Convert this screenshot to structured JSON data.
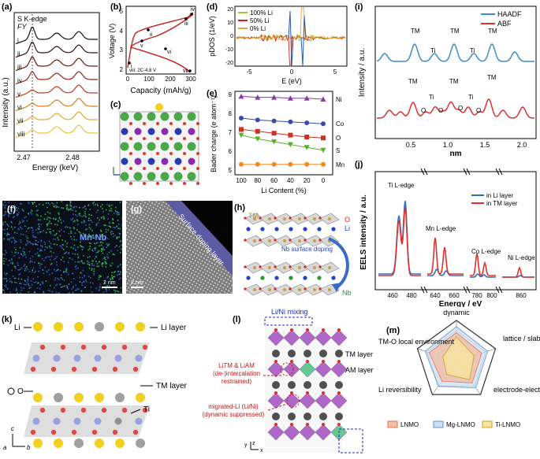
{
  "figure": {
    "panel_a": {
      "label": "(a)",
      "title": "S K-edge",
      "mode": "FY",
      "ylabel": "Intensity (a.u.)",
      "xlabel": "Energy (keV)",
      "xticks": [
        "2.47",
        "2.48"
      ],
      "curves": [
        "i",
        "ii",
        "iii",
        "iv",
        "v",
        "vi",
        "vii",
        "viii"
      ],
      "curve_colors": [
        "#111111",
        "#3a1010",
        "#6a1a14",
        "#9a2418",
        "#c23a1c",
        "#d9801e",
        "#e9a62a",
        "#f3c23c"
      ]
    },
    "panel_b": {
      "label": "(b)",
      "ylabel": "Voltage (V)",
      "xlabel": "Capacity (mAh/g)",
      "yticks": [
        "2",
        "3",
        "4",
        "5"
      ],
      "xticks": [
        "0",
        "100",
        "200",
        "300"
      ],
      "note": "viii: 2C-4.8 V",
      "points": [
        "i",
        "ii",
        "iii",
        "iv",
        "v",
        "vi",
        "vii",
        "viii"
      ]
    },
    "panel_c": {
      "label": "(c)"
    },
    "panel_d": {
      "label": "(d)",
      "ylabel": "pDOS (1/eV)",
      "xlabel": "E (eV)",
      "yticks": [
        "20",
        "10",
        "0",
        "-10",
        "-20"
      ],
      "xticks": [
        "-5",
        "0",
        "5"
      ],
      "legend": [
        {
          "name": "100% Li",
          "color": "#9ccc2c"
        },
        {
          "name": "50% Li",
          "color": "#d22020"
        },
        {
          "name": "0% Li",
          "color": "#f0a040"
        }
      ]
    },
    "panel_e": {
      "label": "(e)",
      "ylabel": "Bader charge (e atom⁻¹)",
      "xlabel": "Li Content (%)",
      "yticks": [
        "5",
        "6",
        "7",
        "8",
        "9"
      ],
      "xticks": [
        "100",
        "80",
        "60",
        "40",
        "20",
        "0"
      ],
      "chart_data": {
        "type": "line",
        "x": [
          100,
          80,
          60,
          40,
          20,
          0
        ],
        "ylim": [
          5,
          9
        ],
        "series": [
          {
            "name": "Ni",
            "color": "#8a3aa0",
            "marker": "triangle-up",
            "values": [
              8.9,
              8.85,
              8.85,
              8.8,
              8.8,
              8.75
            ]
          },
          {
            "name": "Co",
            "color": "#3a4aa8",
            "marker": "circle",
            "values": [
              7.75,
              7.65,
              7.6,
              7.55,
              7.5,
              7.45
            ]
          },
          {
            "name": "O",
            "color": "#d03020",
            "marker": "square",
            "values": [
              7.15,
              7.05,
              6.95,
              6.85,
              6.75,
              6.7
            ]
          },
          {
            "name": "S",
            "color": "#5ab02a",
            "marker": "triangle-down",
            "values": [
              6.85,
              6.65,
              6.5,
              6.35,
              6.2,
              6.05
            ]
          },
          {
            "name": "Mn",
            "color": "#f08a20",
            "marker": "circle",
            "values": [
              5.3,
              5.3,
              5.3,
              5.3,
              5.3,
              5.3
            ]
          }
        ]
      }
    },
    "panel_f": {
      "label": "(f)",
      "caption": "Mn-Nb",
      "scale": "2 nm"
    },
    "panel_g": {
      "label": "(g)",
      "caption": "Surface doping layer",
      "scale": "2 nm"
    },
    "panel_h": {
      "label": "(h)",
      "tm": "TM",
      "o": "O",
      "li": "Li",
      "nb": "Nb",
      "arrow_text": "Nb surface doping"
    },
    "panel_i": {
      "label": "(i)",
      "ylabel": "Intensity / a.u.",
      "xlabel": "nm",
      "xticks": [
        "0.5",
        "1.0",
        "1.5",
        "2.0"
      ],
      "legend": [
        {
          "name": "HAADF",
          "color": "#3c8cc8"
        },
        {
          "name": "ABF",
          "color": "#e03030"
        }
      ],
      "haadf_labels": [
        "TM",
        "Ti",
        "TM",
        "Ti",
        "TM"
      ],
      "abf_labels": [
        "TM",
        "Ti",
        "O",
        "O",
        "TM",
        "O",
        "Ti",
        "O",
        "TM"
      ]
    },
    "panel_j": {
      "label": "(j)",
      "ylabel": "EELS intensity / a.u.",
      "xlabel": "Energy / eV",
      "xticks": [
        "460",
        "480",
        "640",
        "660",
        "780",
        "800",
        "860"
      ],
      "legend": [
        {
          "name": "in Li layer",
          "color": "#2f6fc0"
        },
        {
          "name": "in TM layer",
          "color": "#e03030"
        }
      ],
      "edges": [
        "Ti L-edge",
        "Mn L-edge",
        "Co L-edge",
        "Ni L-edge"
      ]
    },
    "panel_k": {
      "label": "(k)",
      "li_left": "Li",
      "li_layer": "Li layer",
      "o": "O",
      "tm_layer": "TM layer",
      "ti": "Ti",
      "axes": [
        "c",
        "a",
        "b"
      ]
    },
    "panel_l": {
      "label": "(l)",
      "top": "Li/Ni mixing",
      "tm_layer": "TM layer",
      "am_layer": "AM layer",
      "note1_line1": "LiTM & LiAM",
      "note1_line2": "(de-)intercalation",
      "note1_line3": "restrained)",
      "note2_line1": "migrated-Li (Li/Ni)",
      "note2_line2": "(dynamic suppressed)",
      "axes": [
        "y",
        "z",
        "x"
      ]
    },
    "panel_m": {
      "label": "(m)",
      "axes": [
        "dynamic",
        "lattice / slab stability",
        "electrode-electrolyte interface",
        "Li reversibility",
        "TM-O local environment"
      ],
      "legend": [
        {
          "name": "LNMO",
          "color": "#f2a07a"
        },
        {
          "name": "Mg-LNMO",
          "color": "#9cc0e8"
        },
        {
          "name": "Ti-LNMO",
          "color": "#f0d060"
        }
      ]
    }
  }
}
